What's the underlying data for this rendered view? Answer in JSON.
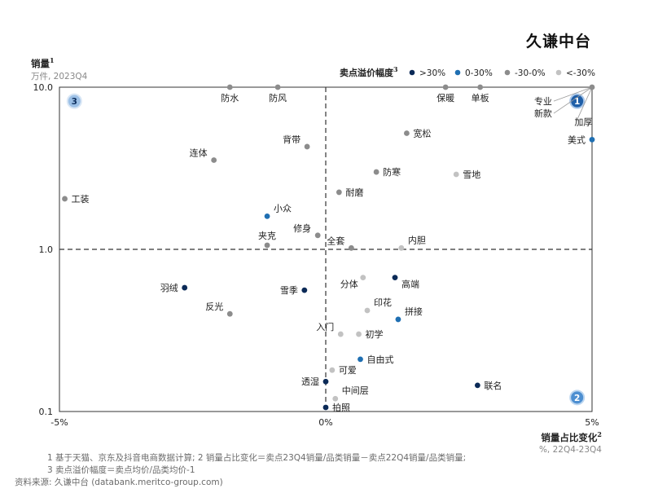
{
  "brand": "久谦中台",
  "footnotes": {
    "line1": "1  基于天猫、京东及抖音电商数据计算; 2  销量占比变化＝卖点23Q4销量/品类销量－卖点22Q4销量/品类销量;",
    "line2": "3  卖点溢价幅度＝卖点均价/品类均价-1",
    "source": "资料来源: 久谦中台 (databank.meritco-group.com)"
  },
  "chart_data": {
    "type": "scatter",
    "ylabel": "销量",
    "ylabel_sup": "1",
    "ylabel_unit": "万件, 2023Q4",
    "xlabel": "销量占比变化",
    "xlabel_sup": "2",
    "xlabel_unit": "%, 22Q4-23Q4",
    "x_scale": "linear",
    "y_scale": "log",
    "xlim": [
      -5,
      5
    ],
    "ylim": [
      0.1,
      10
    ],
    "x_ticks": [
      {
        "value": -5,
        "label": "-5%"
      },
      {
        "value": 0,
        "label": "0%"
      },
      {
        "value": 5,
        "label": "5%"
      }
    ],
    "y_ticks": [
      {
        "value": 10,
        "label": "10.0"
      },
      {
        "value": 1,
        "label": "1.0"
      },
      {
        "value": 0.1,
        "label": "0.1"
      }
    ],
    "reference_lines": {
      "x": 0,
      "y": 1
    },
    "legend": {
      "title": "卖点溢价幅度",
      "title_sup": "3",
      "placement": "top-right",
      "items": [
        {
          "key": "gt30",
          "label": ">30%",
          "color": "#0b2a57"
        },
        {
          "key": "0to30",
          "label": "0-30%",
          "color": "#1f6fb2"
        },
        {
          "key": "m30to0",
          "label": "-30-0%",
          "color": "#8c8c8c"
        },
        {
          "key": "ltm30",
          "label": "<-30%",
          "color": "#c2c2c2"
        }
      ]
    },
    "quadrant_badges": [
      {
        "text": "1",
        "x": 4.72,
        "y": 8.2,
        "style": "dark"
      },
      {
        "text": "2",
        "x": 4.72,
        "y": 0.122,
        "style": "mid"
      },
      {
        "text": "3",
        "x": -4.72,
        "y": 8.2,
        "style": "light"
      }
    ],
    "points": [
      {
        "label": "防水",
        "x": -1.8,
        "y": 10.0,
        "cat": "m30to0",
        "pos": "below"
      },
      {
        "label": "防风",
        "x": -0.9,
        "y": 10.0,
        "cat": "m30to0",
        "pos": "below"
      },
      {
        "label": "保暖",
        "x": 2.25,
        "y": 10.0,
        "cat": "m30to0",
        "pos": "below"
      },
      {
        "label": "单板",
        "x": 2.9,
        "y": 10.0,
        "cat": "m30to0",
        "pos": "below"
      },
      {
        "label": "专业",
        "x": 5.0,
        "y": 10.0,
        "cat": "m30to0",
        "pos": "custom",
        "lx": 4.25,
        "ly": 8.2
      },
      {
        "label": "新款",
        "x": 5.0,
        "y": 10.0,
        "cat": "m30to0",
        "pos": "custom",
        "lx": 4.25,
        "ly": 6.9
      },
      {
        "label": "加厚",
        "x": 5.0,
        "y": 10.0,
        "cat": "m30to0",
        "pos": "custom",
        "lx": 4.67,
        "ly": 6.1
      },
      {
        "label": "美式",
        "x": 5.0,
        "y": 4.75,
        "cat": "0to30",
        "pos": "left"
      },
      {
        "label": "宽松",
        "x": 1.52,
        "y": 5.2,
        "cat": "m30to0",
        "pos": "right"
      },
      {
        "label": "背带",
        "x": -0.35,
        "y": 4.3,
        "cat": "m30to0",
        "pos": "upleft"
      },
      {
        "label": "连体",
        "x": -2.1,
        "y": 3.55,
        "cat": "m30to0",
        "pos": "upleft"
      },
      {
        "label": "防寒",
        "x": 0.95,
        "y": 3.0,
        "cat": "m30to0",
        "pos": "right"
      },
      {
        "label": "雪地",
        "x": 2.45,
        "y": 2.9,
        "cat": "ltm30",
        "pos": "right"
      },
      {
        "label": "耐磨",
        "x": 0.25,
        "y": 2.25,
        "cat": "m30to0",
        "pos": "right"
      },
      {
        "label": "工装",
        "x": -4.9,
        "y": 2.05,
        "cat": "m30to0",
        "pos": "right"
      },
      {
        "label": "小众",
        "x": -1.1,
        "y": 1.6,
        "cat": "0to30",
        "pos": "upright"
      },
      {
        "label": "修身",
        "x": -0.15,
        "y": 1.22,
        "cat": "m30to0",
        "pos": "upleft"
      },
      {
        "label": "夹克",
        "x": -1.1,
        "y": 1.06,
        "cat": "m30to0",
        "pos": "up"
      },
      {
        "label": "全套",
        "x": 0.48,
        "y": 1.02,
        "cat": "m30to0",
        "pos": "upleft"
      },
      {
        "label": "内胆",
        "x": 1.42,
        "y": 1.02,
        "cat": "ltm30",
        "pos": "upright"
      },
      {
        "label": "分体",
        "x": 0.7,
        "y": 0.67,
        "cat": "ltm30",
        "pos": "downleft"
      },
      {
        "label": "高端",
        "x": 1.3,
        "y": 0.67,
        "cat": "gt30",
        "pos": "downright"
      },
      {
        "label": "羽绒",
        "x": -2.65,
        "y": 0.58,
        "cat": "gt30",
        "pos": "left"
      },
      {
        "label": "雪季",
        "x": -0.4,
        "y": 0.56,
        "cat": "gt30",
        "pos": "left"
      },
      {
        "label": "印花",
        "x": 0.78,
        "y": 0.42,
        "cat": "ltm30",
        "pos": "upright"
      },
      {
        "label": "反光",
        "x": -1.8,
        "y": 0.4,
        "cat": "m30to0",
        "pos": "upleft"
      },
      {
        "label": "拼接",
        "x": 1.36,
        "y": 0.37,
        "cat": "0to30",
        "pos": "upright"
      },
      {
        "label": "入门",
        "x": 0.28,
        "y": 0.3,
        "cat": "ltm30",
        "pos": "upleft"
      },
      {
        "label": "初学",
        "x": 0.62,
        "y": 0.3,
        "cat": "ltm30",
        "pos": "right"
      },
      {
        "label": "自由式",
        "x": 0.65,
        "y": 0.21,
        "cat": "0to30",
        "pos": "right"
      },
      {
        "label": "可爱",
        "x": 0.12,
        "y": 0.18,
        "cat": "ltm30",
        "pos": "right"
      },
      {
        "label": "透湿",
        "x": 0.0,
        "y": 0.153,
        "cat": "gt30",
        "pos": "left"
      },
      {
        "label": "联名",
        "x": 2.85,
        "y": 0.145,
        "cat": "gt30",
        "pos": "right"
      },
      {
        "label": "中间层",
        "x": 0.18,
        "y": 0.12,
        "cat": "ltm30",
        "pos": "upright"
      },
      {
        "label": "拍照",
        "x": 0.0,
        "y": 0.106,
        "cat": "gt30",
        "pos": "right"
      }
    ]
  }
}
